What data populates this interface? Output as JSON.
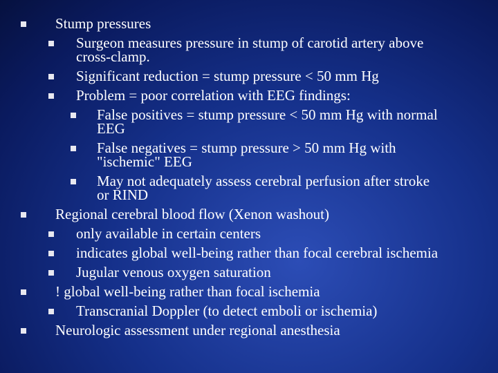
{
  "items": [
    {
      "level": 0,
      "text": "Stump pressures"
    },
    {
      "level": 1,
      "text": "Surgeon measures pressure in stump of carotid artery above cross-clamp."
    },
    {
      "level": 1,
      "text": "Significant reduction = stump pressure < 50 mm Hg"
    },
    {
      "level": 1,
      "text": "Problem = poor correlation with EEG findings:"
    },
    {
      "level": 2,
      "text": "False positives = stump pressure < 50 mm Hg with normal EEG"
    },
    {
      "level": 2,
      "text": "False negatives = stump pressure > 50 mm Hg with \"ischemic\" EEG"
    },
    {
      "level": 2,
      "text": "May not adequately assess cerebral perfusion after stroke or RIND"
    },
    {
      "level": 0,
      "text": "Regional cerebral blood flow (Xenon washout)"
    },
    {
      "level": 1,
      "text": "only available in certain centers"
    },
    {
      "level": 1,
      "text": "indicates global well-being rather than focal cerebral ischemia"
    },
    {
      "level": 1,
      "text": "Jugular venous oxygen saturation"
    },
    {
      "level": 0,
      "text": "! global well-being rather than focal ischemia"
    },
    {
      "level": 1,
      "text": "Transcranial Doppler (to detect emboli or ischemia)"
    },
    {
      "level": 0,
      "text": "Neurologic assessment under regional anesthesia"
    }
  ]
}
